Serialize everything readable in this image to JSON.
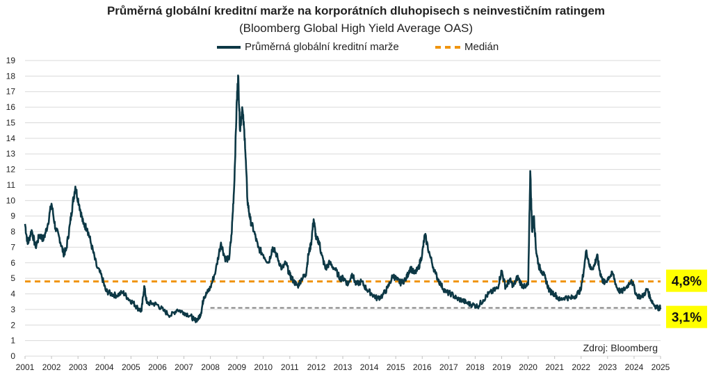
{
  "chart_data": {
    "type": "line",
    "title": "Průměrná globální kreditní marže na korporátních dluhopisech s neinvestičním ratingem",
    "subtitle": "(Bloomberg Global High Yield Average OAS)",
    "xlabel": "",
    "ylabel": "",
    "ylim": [
      0,
      19
    ],
    "yticks": [
      "0",
      "1",
      "2",
      "3",
      "4",
      "5",
      "6",
      "7",
      "8",
      "9",
      "10",
      "11",
      "12",
      "13",
      "14",
      "15",
      "16",
      "17",
      "18",
      "19"
    ],
    "xticks": [
      "2001",
      "2002",
      "2003",
      "2004",
      "2005",
      "2006",
      "2007",
      "2008",
      "2009",
      "2010",
      "2011",
      "2012",
      "2013",
      "2014",
      "2015",
      "2016",
      "2017",
      "2018",
      "2019",
      "2020",
      "2021",
      "2022",
      "2023",
      "2024",
      "2025"
    ],
    "grid": true,
    "legend_position": "top-center",
    "series": [
      {
        "name": "Průměrná globální kreditní marže",
        "color": "#0d3845",
        "x": [
          2001.0,
          2001.1,
          2001.25,
          2001.4,
          2001.55,
          2001.7,
          2001.85,
          2002.0,
          2002.15,
          2002.3,
          2002.45,
          2002.55,
          2002.7,
          2002.8,
          2002.9,
          2003.05,
          2003.2,
          2003.35,
          2003.5,
          2003.7,
          2003.9,
          2004.05,
          2004.25,
          2004.45,
          2004.7,
          2004.9,
          2005.1,
          2005.25,
          2005.4,
          2005.5,
          2005.6,
          2005.8,
          2006.0,
          2006.25,
          2006.5,
          2006.75,
          2007.0,
          2007.25,
          2007.4,
          2007.55,
          2007.65,
          2007.75,
          2007.85,
          2008.0,
          2008.2,
          2008.4,
          2008.55,
          2008.7,
          2008.8,
          2008.9,
          2009.0,
          2009.05,
          2009.12,
          2009.2,
          2009.3,
          2009.4,
          2009.5,
          2009.65,
          2009.8,
          2010.0,
          2010.2,
          2010.35,
          2010.5,
          2010.7,
          2010.85,
          2011.0,
          2011.15,
          2011.3,
          2011.45,
          2011.6,
          2011.7,
          2011.8,
          2011.9,
          2012.0,
          2012.1,
          2012.2,
          2012.35,
          2012.5,
          2012.7,
          2012.9,
          2013.05,
          2013.2,
          2013.35,
          2013.5,
          2013.7,
          2013.9,
          2014.1,
          2014.3,
          2014.5,
          2014.7,
          2014.9,
          2015.05,
          2015.2,
          2015.4,
          2015.55,
          2015.7,
          2015.85,
          2016.0,
          2016.1,
          2016.3,
          2016.5,
          2016.7,
          2016.9,
          2017.1,
          2017.3,
          2017.5,
          2017.7,
          2017.9,
          2018.1,
          2018.3,
          2018.5,
          2018.7,
          2018.85,
          2019.0,
          2019.15,
          2019.3,
          2019.45,
          2019.6,
          2019.75,
          2019.9,
          2020.0,
          2020.08,
          2020.15,
          2020.22,
          2020.3,
          2020.4,
          2020.5,
          2020.65,
          2020.8,
          2021.0,
          2021.2,
          2021.4,
          2021.6,
          2021.8,
          2022.0,
          2022.2,
          2022.35,
          2022.5,
          2022.6,
          2022.7,
          2022.8,
          2022.9,
          2023.05,
          2023.2,
          2023.35,
          2023.5,
          2023.7,
          2023.9,
          2024.1,
          2024.3,
          2024.5,
          2024.6,
          2024.75,
          2024.9,
          2025.0
        ],
        "values": [
          8.5,
          7.2,
          8.1,
          7.0,
          7.8,
          7.5,
          8.4,
          9.8,
          8.2,
          7.6,
          6.6,
          6.8,
          8.5,
          9.8,
          10.9,
          9.7,
          8.5,
          8.2,
          7.2,
          5.8,
          5.1,
          4.2,
          4.0,
          3.9,
          4.1,
          3.7,
          3.4,
          3.1,
          2.9,
          4.5,
          3.4,
          3.4,
          3.3,
          2.9,
          2.6,
          3.0,
          2.8,
          2.6,
          2.3,
          2.4,
          2.8,
          3.8,
          4.0,
          4.4,
          5.5,
          7.3,
          6.3,
          6.2,
          7.8,
          11.0,
          16.5,
          18.0,
          14.5,
          16.0,
          14.0,
          10.0,
          8.8,
          8.0,
          7.0,
          6.5,
          6.0,
          7.0,
          6.5,
          5.6,
          6.0,
          5.2,
          4.8,
          4.5,
          5.0,
          5.2,
          6.5,
          7.2,
          8.8,
          7.5,
          7.4,
          6.5,
          5.6,
          6.0,
          5.6,
          5.0,
          5.0,
          4.6,
          5.3,
          4.6,
          4.8,
          4.3,
          4.0,
          3.7,
          3.9,
          4.4,
          5.2,
          4.9,
          4.7,
          5.0,
          5.7,
          5.3,
          5.6,
          6.6,
          7.8,
          6.4,
          5.3,
          4.6,
          4.1,
          4.0,
          3.7,
          3.6,
          3.4,
          3.3,
          3.2,
          3.6,
          4.0,
          4.2,
          4.4,
          5.5,
          4.4,
          4.9,
          4.5,
          5.1,
          4.6,
          4.4,
          4.6,
          11.9,
          8.0,
          9.0,
          6.8,
          5.8,
          5.5,
          5.0,
          4.2,
          4.0,
          3.6,
          3.8,
          3.7,
          3.9,
          4.3,
          6.8,
          5.6,
          5.8,
          6.5,
          5.5,
          4.9,
          4.7,
          5.1,
          5.3,
          4.4,
          4.1,
          4.4,
          4.9,
          3.9,
          3.8,
          4.3,
          3.8,
          3.3,
          3.1,
          3.1
        ]
      }
    ],
    "reference_lines": [
      {
        "name": "Medián",
        "value": 4.8,
        "color": "#f0940e",
        "style": "dashed",
        "label": "4,8%",
        "label_bg": "#ffff00"
      },
      {
        "name": "",
        "value": 3.1,
        "color": "#808080",
        "style": "dashed",
        "label": "3,1%",
        "label_bg": "#ffff00",
        "start_x": 2008.0
      }
    ],
    "source": "Zdroj: Bloomberg"
  },
  "legend": {
    "line_label": "Průměrná globální kreditní marže",
    "median_label": "Medián"
  }
}
